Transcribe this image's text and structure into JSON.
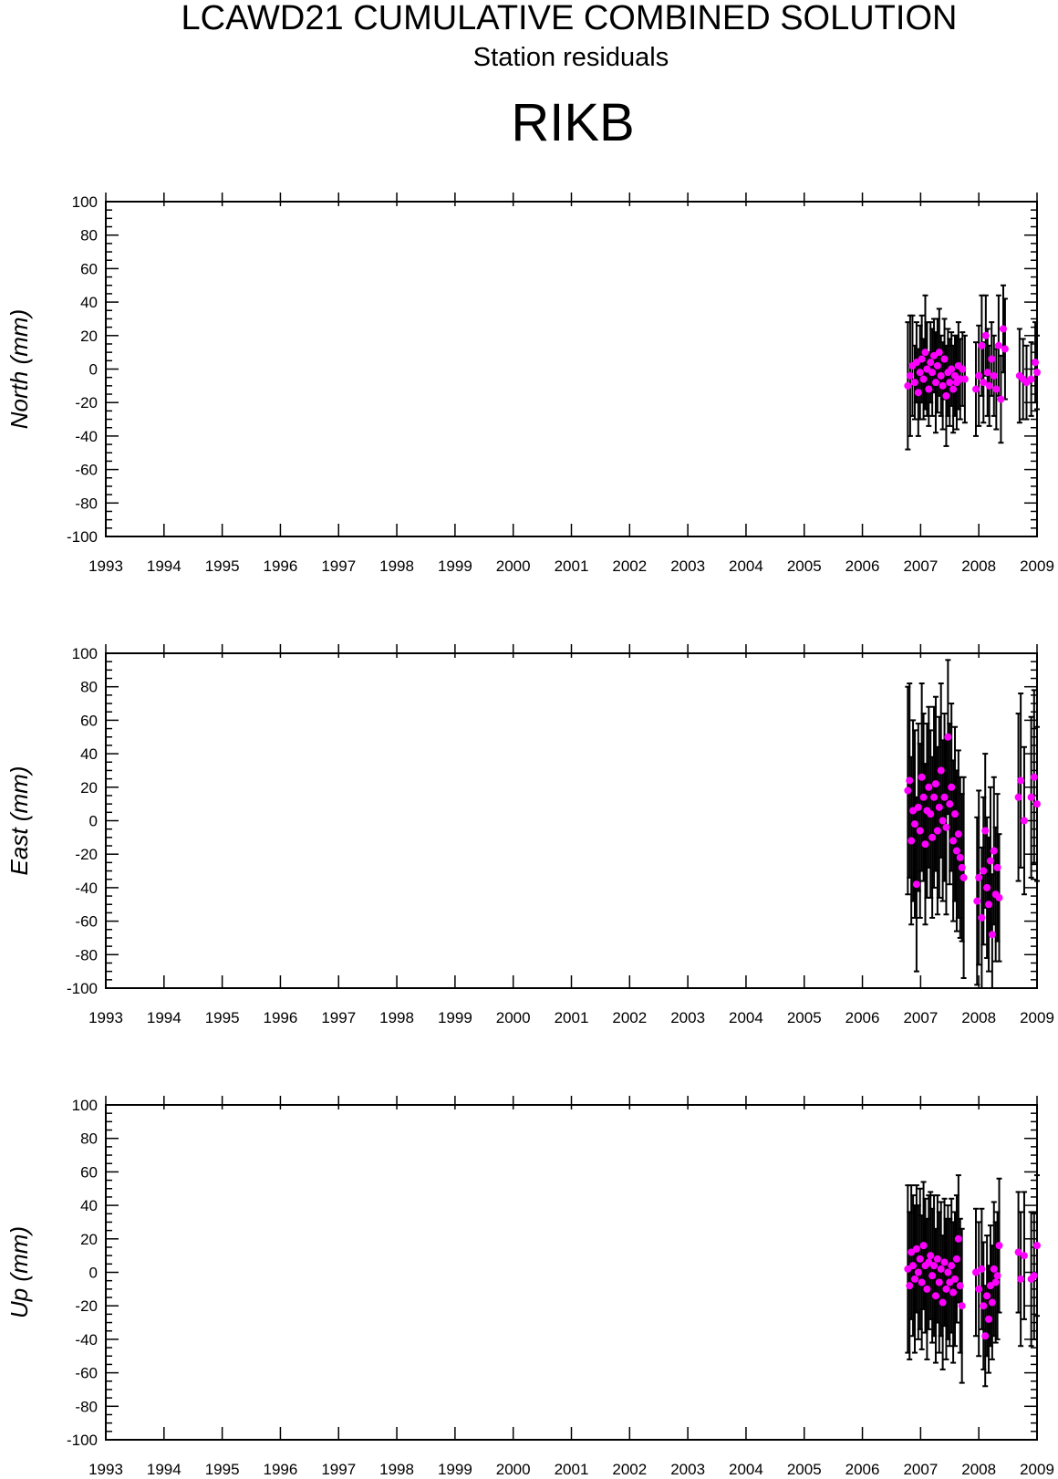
{
  "header": {
    "title": "LCAWD21 CUMULATIVE COMBINED SOLUTION",
    "subtitle": "Station residuals",
    "station": "RIKB"
  },
  "colors": {
    "point": "#ff00ff",
    "errorbar": "#000000",
    "axis": "#000000"
  },
  "chart_data": [
    {
      "type": "scatter",
      "ylabel": "North (mm)",
      "xlim": [
        1993,
        2009
      ],
      "ylim": [
        -100,
        100
      ],
      "xticks": [
        "1993",
        "1994",
        "1995",
        "1996",
        "1997",
        "1998",
        "1999",
        "2000",
        "2001",
        "2002",
        "2003",
        "2004",
        "2005",
        "2006",
        "2007",
        "2008",
        "2009"
      ],
      "yticks": [
        "100",
        "80",
        "60",
        "40",
        "20",
        "0",
        "-20",
        "-40",
        "-60",
        "-80",
        "-100"
      ],
      "errorbars": true,
      "series": [
        {
          "points": [
            [
              2006.78,
              -10,
              38
            ],
            [
              2006.82,
              -4,
              36
            ],
            [
              2006.86,
              2,
              30
            ],
            [
              2006.9,
              -8,
              22
            ],
            [
              2006.93,
              4,
              24
            ],
            [
              2006.96,
              -14,
              26
            ],
            [
              2006.99,
              -2,
              28
            ],
            [
              2007.02,
              6,
              26
            ],
            [
              2007.05,
              -6,
              24
            ],
            [
              2007.08,
              10,
              34
            ],
            [
              2007.11,
              0,
              28
            ],
            [
              2007.14,
              -12,
              22
            ],
            [
              2007.17,
              4,
              24
            ],
            [
              2007.2,
              -2,
              26
            ],
            [
              2007.23,
              8,
              22
            ],
            [
              2007.26,
              -8,
              30
            ],
            [
              2007.29,
              2,
              28
            ],
            [
              2007.32,
              10,
              26
            ],
            [
              2007.35,
              -4,
              24
            ],
            [
              2007.38,
              -10,
              26
            ],
            [
              2007.41,
              6,
              24
            ],
            [
              2007.44,
              -16,
              30
            ],
            [
              2007.47,
              -2,
              26
            ],
            [
              2007.5,
              -8,
              26
            ],
            [
              2007.53,
              0,
              22
            ],
            [
              2007.56,
              -12,
              26
            ],
            [
              2007.59,
              -4,
              24
            ],
            [
              2007.62,
              -8,
              28
            ],
            [
              2007.65,
              2,
              26
            ],
            [
              2007.68,
              -6,
              24
            ],
            [
              2007.72,
              0,
              22
            ],
            [
              2007.76,
              -6,
              26
            ],
            [
              2007.95,
              -12,
              28
            ],
            [
              2008.0,
              -4,
              30
            ],
            [
              2008.05,
              14,
              30
            ],
            [
              2008.08,
              -8,
              24
            ],
            [
              2008.12,
              20,
              24
            ],
            [
              2008.15,
              -2,
              26
            ],
            [
              2008.18,
              -10,
              24
            ],
            [
              2008.22,
              6,
              22
            ],
            [
              2008.26,
              -4,
              24
            ],
            [
              2008.3,
              -12,
              24
            ],
            [
              2008.34,
              14,
              30
            ],
            [
              2008.38,
              -18,
              26
            ],
            [
              2008.42,
              24,
              26
            ],
            [
              2008.45,
              12,
              30
            ],
            [
              2008.7,
              -4,
              28
            ],
            [
              2008.76,
              -6,
              24
            ],
            [
              2008.82,
              -8,
              22
            ],
            [
              2008.9,
              -6,
              22
            ],
            [
              2008.97,
              4,
              24
            ],
            [
              2009.0,
              -2,
              22
            ]
          ]
        }
      ]
    },
    {
      "type": "scatter",
      "ylabel": "East (mm)",
      "xlim": [
        1993,
        2009
      ],
      "ylim": [
        -100,
        100
      ],
      "xticks": [
        "1993",
        "1994",
        "1995",
        "1996",
        "1997",
        "1998",
        "1999",
        "2000",
        "2001",
        "2002",
        "2003",
        "2004",
        "2005",
        "2006",
        "2007",
        "2008",
        "2009"
      ],
      "yticks": [
        "100",
        "80",
        "60",
        "40",
        "20",
        "0",
        "-20",
        "-40",
        "-60",
        "-80",
        "-100"
      ],
      "errorbars": true,
      "series": [
        {
          "points": [
            [
              2006.78,
              18,
              62
            ],
            [
              2006.81,
              24,
              58
            ],
            [
              2006.84,
              -12,
              50
            ],
            [
              2006.87,
              6,
              54
            ],
            [
              2006.9,
              -2,
              56
            ],
            [
              2006.93,
              -38,
              52
            ],
            [
              2006.96,
              8,
              50
            ],
            [
              2006.99,
              -6,
              52
            ],
            [
              2007.02,
              26,
              56
            ],
            [
              2007.05,
              14,
              50
            ],
            [
              2007.08,
              -14,
              48
            ],
            [
              2007.11,
              6,
              52
            ],
            [
              2007.14,
              20,
              48
            ],
            [
              2007.17,
              4,
              50
            ],
            [
              2007.2,
              -10,
              48
            ],
            [
              2007.23,
              14,
              54
            ],
            [
              2007.26,
              22,
              52
            ],
            [
              2007.29,
              -6,
              50
            ],
            [
              2007.32,
              8,
              54
            ],
            [
              2007.35,
              30,
              52
            ],
            [
              2007.38,
              0,
              48
            ],
            [
              2007.41,
              14,
              50
            ],
            [
              2007.44,
              -4,
              52
            ],
            [
              2007.47,
              50,
              46
            ],
            [
              2007.5,
              10,
              48
            ],
            [
              2007.53,
              20,
              50
            ],
            [
              2007.56,
              -12,
              48
            ],
            [
              2007.59,
              4,
              52
            ],
            [
              2007.62,
              -18,
              48
            ],
            [
              2007.65,
              -8,
              50
            ],
            [
              2007.68,
              -22,
              48
            ],
            [
              2007.71,
              -28,
              44
            ],
            [
              2007.74,
              -34,
              60
            ],
            [
              2007.97,
              -48,
              50
            ],
            [
              2008.0,
              -34,
              52
            ],
            [
              2008.05,
              -58,
              42
            ],
            [
              2008.08,
              -30,
              44
            ],
            [
              2008.11,
              -6,
              46
            ],
            [
              2008.14,
              -40,
              42
            ],
            [
              2008.17,
              -50,
              40
            ],
            [
              2008.2,
              -24,
              44
            ],
            [
              2008.23,
              -68,
              36
            ],
            [
              2008.26,
              -18,
              44
            ],
            [
              2008.29,
              -44,
              40
            ],
            [
              2008.32,
              -28,
              44
            ],
            [
              2008.35,
              -46,
              38
            ],
            [
              2008.68,
              14,
              50
            ],
            [
              2008.72,
              24,
              52
            ],
            [
              2008.78,
              0,
              44
            ],
            [
              2008.9,
              14,
              48
            ],
            [
              2008.95,
              26,
              52
            ],
            [
              2009.0,
              10,
              46
            ]
          ]
        }
      ]
    },
    {
      "type": "scatter",
      "ylabel": "Up (mm)",
      "xlim": [
        1993,
        2009
      ],
      "ylim": [
        -100,
        100
      ],
      "xticks": [
        "1993",
        "1994",
        "1995",
        "1996",
        "1997",
        "1998",
        "1999",
        "2000",
        "2001",
        "2002",
        "2003",
        "2004",
        "2005",
        "2006",
        "2007",
        "2008",
        "2009"
      ],
      "yticks": [
        "100",
        "80",
        "60",
        "40",
        "20",
        "0",
        "-20",
        "-40",
        "-60",
        "-80",
        "-100"
      ],
      "errorbars": true,
      "series": [
        {
          "points": [
            [
              2006.78,
              2,
              50
            ],
            [
              2006.81,
              -8,
              44
            ],
            [
              2006.84,
              12,
              40
            ],
            [
              2006.87,
              4,
              42
            ],
            [
              2006.9,
              -4,
              44
            ],
            [
              2006.93,
              14,
              38
            ],
            [
              2006.96,
              0,
              40
            ],
            [
              2006.99,
              8,
              42
            ],
            [
              2007.02,
              -6,
              40
            ],
            [
              2007.05,
              16,
              38
            ],
            [
              2007.08,
              4,
              40
            ],
            [
              2007.11,
              -10,
              42
            ],
            [
              2007.14,
              6,
              40
            ],
            [
              2007.17,
              10,
              38
            ],
            [
              2007.2,
              -2,
              40
            ],
            [
              2007.23,
              4,
              42
            ],
            [
              2007.26,
              -14,
              40
            ],
            [
              2007.29,
              8,
              38
            ],
            [
              2007.32,
              -6,
              42
            ],
            [
              2007.35,
              2,
              40
            ],
            [
              2007.38,
              -18,
              40
            ],
            [
              2007.41,
              6,
              38
            ],
            [
              2007.44,
              -10,
              42
            ],
            [
              2007.47,
              0,
              40
            ],
            [
              2007.5,
              -6,
              38
            ],
            [
              2007.53,
              4,
              40
            ],
            [
              2007.56,
              -12,
              42
            ],
            [
              2007.59,
              -4,
              40
            ],
            [
              2007.62,
              8,
              38
            ],
            [
              2007.65,
              20,
              38
            ],
            [
              2007.68,
              -8,
              40
            ],
            [
              2007.71,
              -20,
              46
            ],
            [
              2007.95,
              0,
              38
            ],
            [
              2008.0,
              -10,
              40
            ],
            [
              2008.05,
              2,
              36
            ],
            [
              2008.08,
              -20,
              38
            ],
            [
              2008.11,
              -38,
              30
            ],
            [
              2008.14,
              -14,
              36
            ],
            [
              2008.17,
              -28,
              32
            ],
            [
              2008.2,
              -8,
              36
            ],
            [
              2008.23,
              -18,
              34
            ],
            [
              2008.26,
              2,
              40
            ],
            [
              2008.29,
              -6,
              36
            ],
            [
              2008.32,
              -2,
              38
            ],
            [
              2008.35,
              16,
              40
            ],
            [
              2008.68,
              12,
              36
            ],
            [
              2008.72,
              -4,
              40
            ],
            [
              2008.78,
              10,
              38
            ],
            [
              2008.9,
              -4,
              40
            ],
            [
              2008.95,
              -2,
              38
            ],
            [
              2009.0,
              16,
              42
            ]
          ]
        }
      ]
    }
  ]
}
